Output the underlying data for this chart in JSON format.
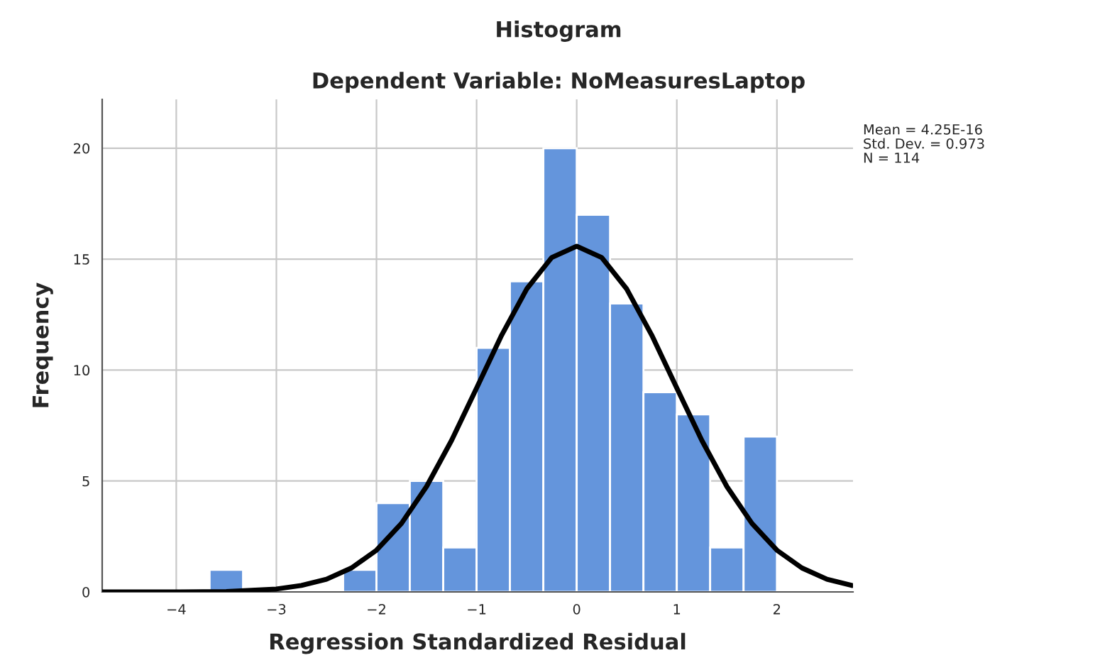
{
  "chart_data": {
    "type": "histogram",
    "title": "Histogram",
    "subtitle": "Dependent Variable: NoMeasuresLaptop",
    "xlabel": "Regression Standardized Residual",
    "ylabel": "Frequency",
    "bins": [
      -3.667,
      -3.333,
      -3.0,
      -2.667,
      -2.333,
      -2.0,
      -1.667,
      -1.333,
      -1.0,
      -0.667,
      -0.333,
      0.0,
      0.333,
      0.667,
      1.0,
      1.333,
      1.667,
      2.0
    ],
    "values": [
      1,
      0,
      0,
      0,
      1,
      4,
      5,
      2,
      11,
      14,
      20,
      17,
      13,
      9,
      8,
      2,
      7
    ],
    "color": "#6495dc",
    "series": [
      {
        "type": "line",
        "color": "#000000",
        "x": [
          -4.74,
          -4.0,
          -3.5,
          -3.0,
          -2.75,
          -2.5,
          -2.25,
          -2.0,
          -1.75,
          -1.5,
          -1.25,
          -1.0,
          -0.75,
          -0.5,
          -0.25,
          0.0,
          0.25,
          0.5,
          0.75,
          1.0,
          1.25,
          1.5,
          1.75,
          2.0,
          2.25,
          2.5,
          2.75
        ],
        "values": [
          0.0,
          0.0,
          0.02,
          0.13,
          0.29,
          0.57,
          1.08,
          1.88,
          3.09,
          4.75,
          6.83,
          9.19,
          11.57,
          13.65,
          15.07,
          15.58,
          15.07,
          13.65,
          11.57,
          9.19,
          6.83,
          4.75,
          3.09,
          1.88,
          1.08,
          0.57,
          0.29
        ]
      }
    ],
    "xlim": [
      -4.74,
      2.76
    ],
    "ylim": [
      0,
      22.2
    ],
    "xticks": [
      {
        "value": -4,
        "label": "−4"
      },
      {
        "value": -3,
        "label": "−3"
      },
      {
        "value": -2,
        "label": "−2"
      },
      {
        "value": -1,
        "label": "−1"
      },
      0,
      1,
      2
    ],
    "yticks": [
      0,
      5,
      10,
      15,
      20
    ],
    "grid": true,
    "annotations": [
      "Mean = 4.25E-16",
      "Std. Dev. = 0.973",
      "N = 114"
    ]
  }
}
